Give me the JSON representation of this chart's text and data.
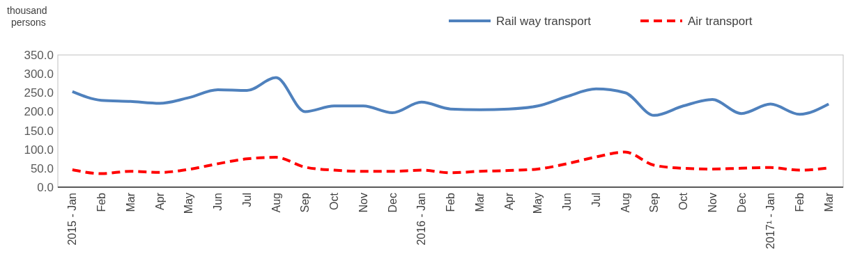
{
  "chart_data": {
    "type": "line",
    "ylabel": "thousand persons",
    "categories": [
      "2015 - Jan",
      "Feb",
      "Mar",
      "Apr",
      "May",
      "Jun",
      "Jul",
      "Aug",
      "Sep",
      "Oct",
      "Nov",
      "Dec",
      "2016 - Jan",
      "Feb",
      "Mar",
      "Apr",
      "May",
      "Jun",
      "Jul",
      "Aug",
      "Sep",
      "Oct",
      "Nov",
      "Dec",
      "2017¹ - Jan",
      "Feb",
      "Mar"
    ],
    "series": [
      {
        "name": "Rail way transport",
        "color": "#4f81bd",
        "line_style": "solid",
        "values": [
          253,
          230,
          227,
          222,
          237,
          258,
          256,
          290,
          200,
          215,
          215,
          197,
          225,
          207,
          205,
          207,
          215,
          240,
          260,
          250,
          190,
          215,
          232,
          195,
          220,
          193,
          220
        ]
      },
      {
        "name": "Air transport",
        "color": "#ff0000",
        "line_style": "dashed",
        "values": [
          46,
          36,
          42,
          39,
          47,
          62,
          75,
          79,
          53,
          45,
          42,
          42,
          45,
          38,
          42,
          44,
          48,
          62,
          80,
          93,
          58,
          50,
          48,
          50,
          52,
          45,
          51
        ]
      }
    ],
    "ylim": [
      0,
      350
    ],
    "yticks": [
      {
        "value": 0,
        "label": "0.0"
      },
      {
        "value": 50,
        "label": "50.0"
      },
      {
        "value": 100,
        "label": "100.0"
      },
      {
        "value": 150,
        "label": "150.0"
      },
      {
        "value": 200,
        "label": "200.0"
      },
      {
        "value": 250,
        "label": "250.0"
      },
      {
        "value": 300,
        "label": "300.0"
      },
      {
        "value": 350,
        "label": "350.0"
      }
    ],
    "grid": false,
    "legend": "top right",
    "marker": "none"
  }
}
